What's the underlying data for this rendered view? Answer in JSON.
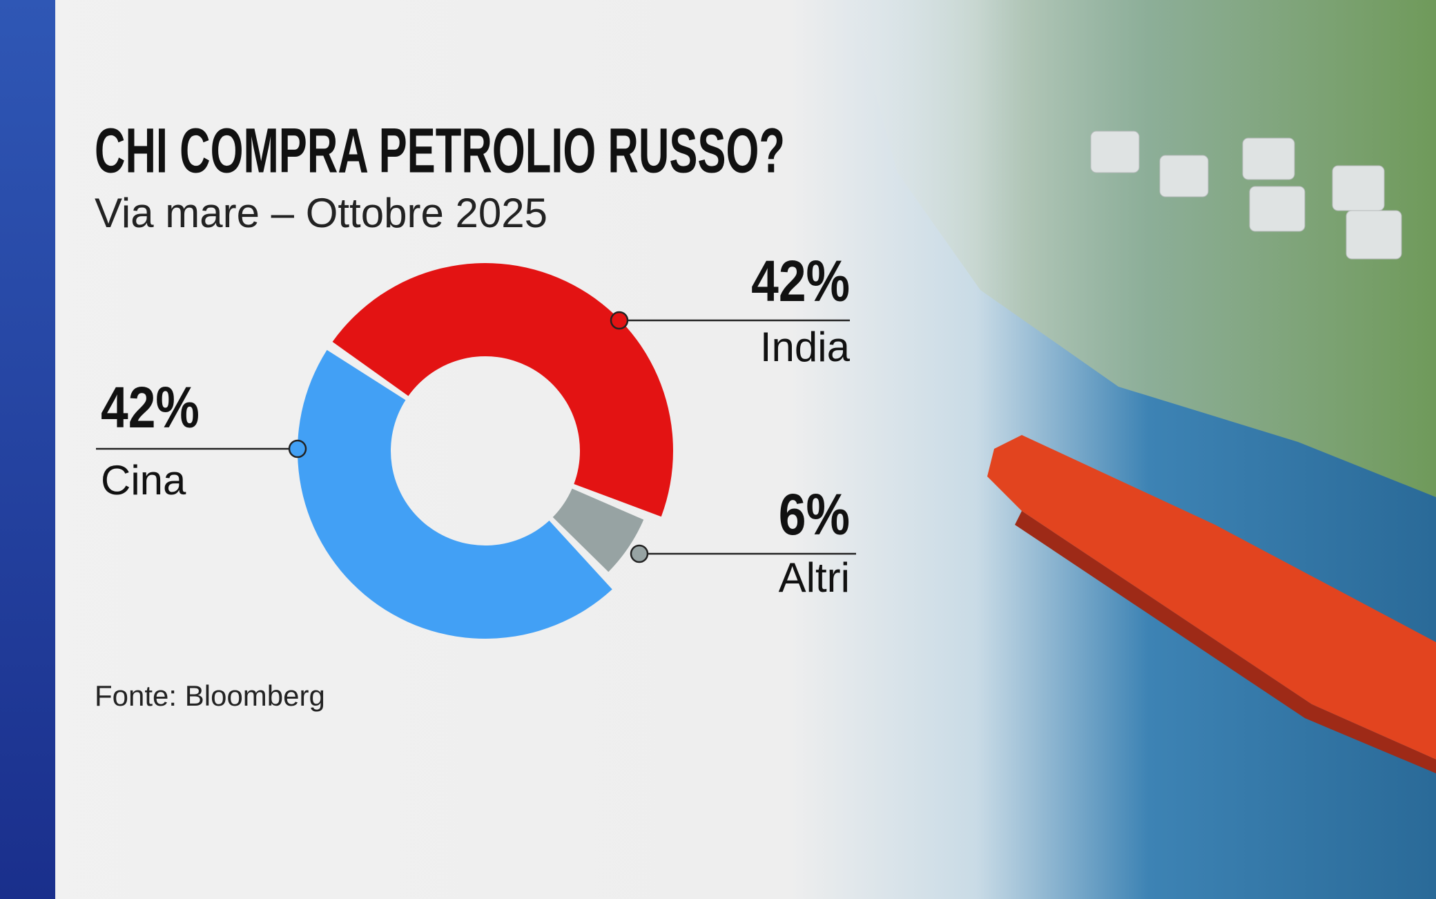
{
  "chart_data": {
    "type": "pie",
    "donut": true,
    "title": "CHI COMPRA PETROLIO RUSSO?",
    "subtitle": "Via mare – Ottobre 2025",
    "source": "Fonte: Bloomberg",
    "categories": [
      "India",
      "Altri",
      "Cina"
    ],
    "values": [
      42,
      6,
      42
    ],
    "value_labels": [
      "42%",
      "6%",
      "42%"
    ],
    "colors": [
      "#e31313",
      "#97a3a3",
      "#42a0f5"
    ]
  }
}
